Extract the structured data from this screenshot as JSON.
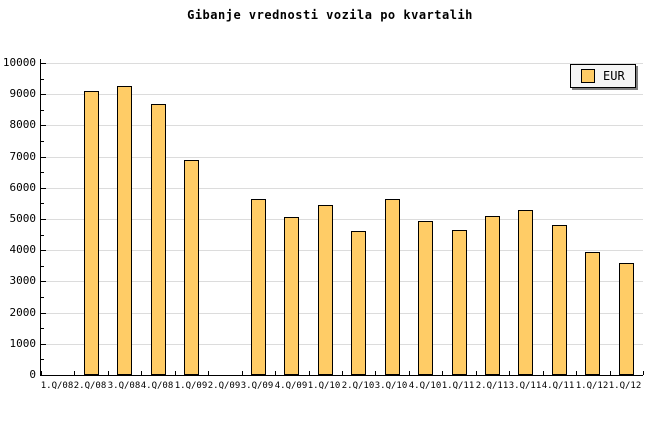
{
  "chart_data": {
    "type": "bar",
    "title": "Gibanje vrednosti vozila po kvartalih",
    "categories": [
      "1.Q/08",
      "2.Q/08",
      "3.Q/08",
      "4.Q/08",
      "1.Q/09",
      "2.Q/09",
      "3.Q/09",
      "4.Q/09",
      "1.Q/10",
      "2.Q/10",
      "3.Q/10",
      "4.Q/10",
      "1.Q/11",
      "2.Q/11",
      "3.Q/11",
      "4.Q/11",
      "1.Q/12",
      "1.Q/12"
    ],
    "series": [
      {
        "name": "EUR",
        "values": [
          null,
          9100,
          9250,
          8700,
          6900,
          null,
          5650,
          5050,
          5450,
          4600,
          5650,
          4950,
          4650,
          5100,
          5300,
          4800,
          3950,
          3600
        ]
      }
    ],
    "xlabel": "",
    "ylabel": "",
    "ylim": [
      0,
      10000
    ],
    "y_major_step": 1000,
    "y_minor_step": 500,
    "grid": "horizontal-major",
    "legend": {
      "position": "top-right",
      "entries": [
        "EUR"
      ]
    },
    "colors": {
      "bar_fill": "#FFCC66",
      "bar_border": "#000000",
      "grid": "#DCDCDC",
      "axis": "#000000",
      "background": "#FFFFFF",
      "legend_bg": "#F5F5F5",
      "legend_shadow": "#808080",
      "text": "#000000"
    }
  }
}
